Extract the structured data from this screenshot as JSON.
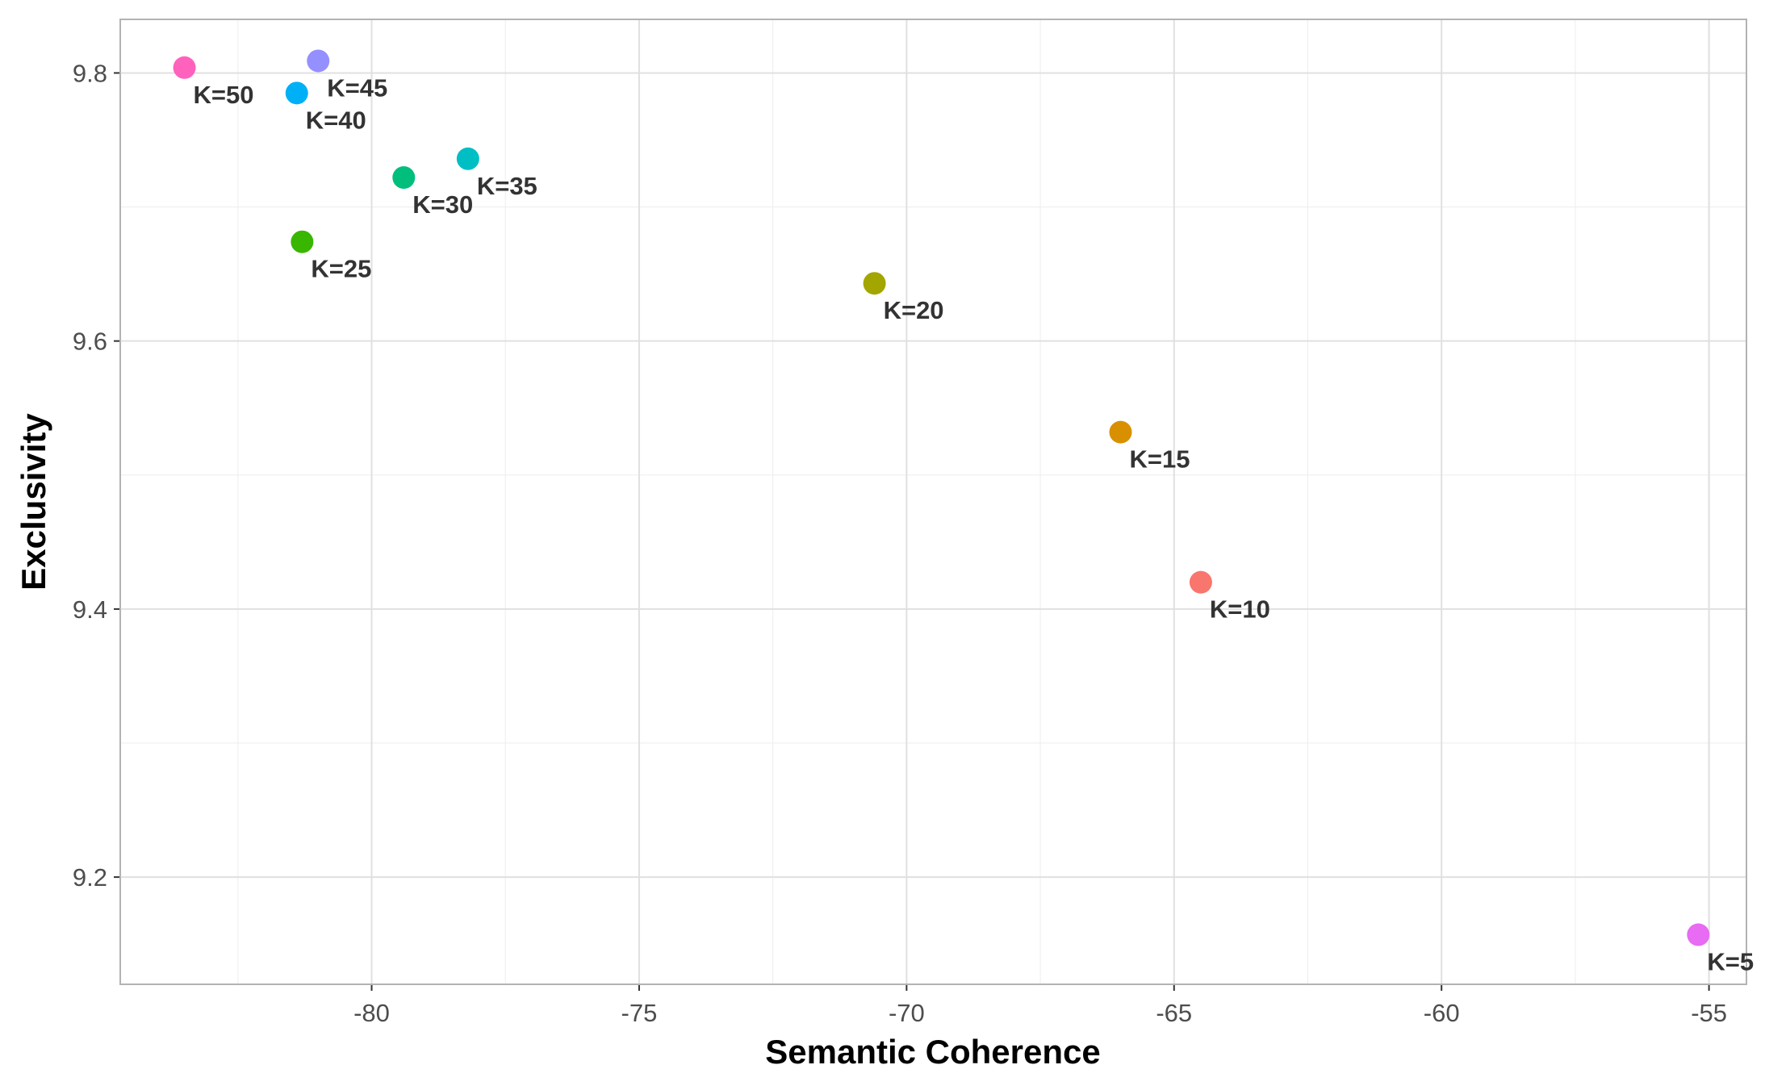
{
  "chart_data": {
    "type": "scatter",
    "xlabel": "Semantic Coherence",
    "ylabel": "Exclusivity",
    "xlim": [
      -84.7,
      -54.3
    ],
    "ylim": [
      9.12,
      9.84
    ],
    "x_ticks": [
      -80,
      -75,
      -70,
      -65,
      -60,
      -55
    ],
    "x_tick_labels": [
      "-80",
      "-75",
      "-70",
      "-65",
      "-60",
      "-55"
    ],
    "y_ticks": [
      9.2,
      9.4,
      9.6,
      9.8
    ],
    "y_tick_labels": [
      "9.2",
      "9.4",
      "9.6",
      "9.8"
    ],
    "grid": true,
    "legend": "none",
    "points": [
      {
        "label": "K=5",
        "x": -55.2,
        "y": 9.157,
        "color": "#E76BF3"
      },
      {
        "label": "K=10",
        "x": -64.5,
        "y": 9.42,
        "color": "#F8766D"
      },
      {
        "label": "K=15",
        "x": -66.0,
        "y": 9.532,
        "color": "#D89000"
      },
      {
        "label": "K=20",
        "x": -70.6,
        "y": 9.643,
        "color": "#A3A500"
      },
      {
        "label": "K=25",
        "x": -81.3,
        "y": 9.674,
        "color": "#39B600"
      },
      {
        "label": "K=30",
        "x": -79.4,
        "y": 9.722,
        "color": "#00BF7D"
      },
      {
        "label": "K=35",
        "x": -78.2,
        "y": 9.736,
        "color": "#00BFC4"
      },
      {
        "label": "K=40",
        "x": -81.4,
        "y": 9.785,
        "color": "#00B0F6"
      },
      {
        "label": "K=45",
        "x": -81.0,
        "y": 9.809,
        "color": "#9590FF"
      },
      {
        "label": "K=50",
        "x": -83.5,
        "y": 9.804,
        "color": "#FF62BC"
      }
    ]
  }
}
